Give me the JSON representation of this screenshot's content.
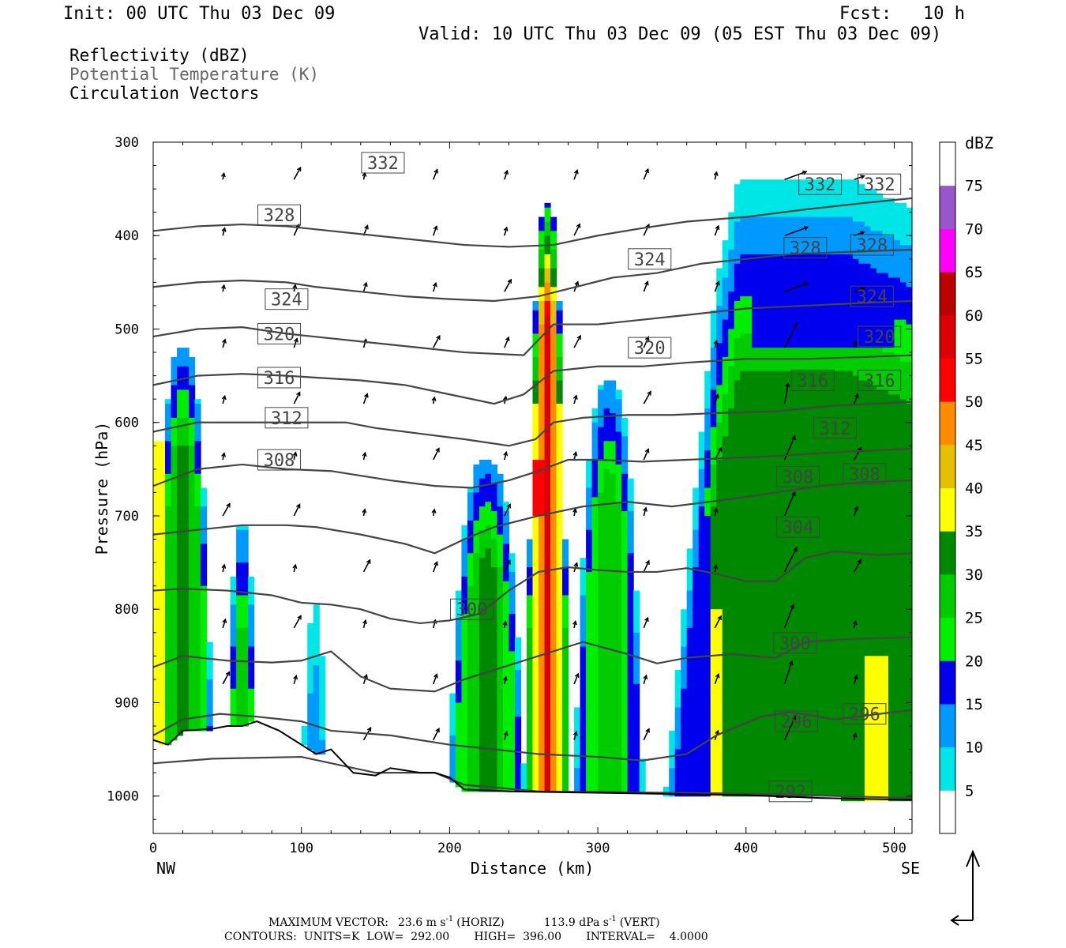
{
  "header": {
    "init": "Init: 00 UTC Thu 03 Dec 09",
    "fcst": "Fcst:   10 h",
    "valid": "Valid: 10 UTC Thu 03 Dec 09 (05 EST Thu 03 Dec 09)"
  },
  "variables": [
    "Reflectivity (dBZ)",
    "Potential Temperature (K)",
    "Circulation Vectors"
  ],
  "footer": {
    "max_vector_label": "MAXIMUM VECTOR:",
    "max_horiz": "23.6 m s",
    "horiz_sup": "-1",
    "horiz_tag": "(HORIZ)",
    "max_vert": "113.9 dPa s",
    "vert_sup": "-1",
    "vert_tag": "(VERT)",
    "contours": "CONTOURS:  UNITS=K  LOW=  292.00       HIGH=  396.00       INTERVAL=    4.0000"
  },
  "colorbar": {
    "title": "dBZ",
    "levels": [
      5,
      10,
      15,
      20,
      25,
      30,
      35,
      40,
      45,
      50,
      55,
      60,
      65,
      70,
      75
    ],
    "colors": [
      "#ffffff",
      "#00e5e5",
      "#0099ff",
      "#0000ee",
      "#00ee00",
      "#00cc00",
      "#008800",
      "#ffff00",
      "#e5c000",
      "#ff8c00",
      "#ff0000",
      "#dd0000",
      "#bb0000",
      "#ff00ff",
      "#9955cc",
      "#ffffff"
    ]
  },
  "chart_data": {
    "type": "cross-section",
    "xlabel": "Distance (km)",
    "ylabel": "Pressure (hPa)",
    "xlim": [
      0,
      512
    ],
    "ylim": [
      1040,
      300
    ],
    "x_ticks": [
      0,
      100,
      200,
      300,
      400,
      500
    ],
    "y_ticks": [
      300,
      400,
      500,
      600,
      700,
      800,
      900,
      1000
    ],
    "x_end_labels": [
      "NW",
      "SE"
    ],
    "theta_label_values": [
      "292",
      "296",
      "300",
      "304",
      "308",
      "312",
      "316",
      "320",
      "324",
      "328",
      "332"
    ],
    "theta_contours": [
      {
        "theta": 292,
        "points": [
          [
            0,
            965
          ],
          [
            40,
            960
          ],
          [
            100,
            958
          ],
          [
            150,
            975
          ],
          [
            190,
            975
          ],
          [
            210,
            988
          ],
          [
            260,
            995
          ],
          [
            320,
            996
          ],
          [
            380,
            997
          ],
          [
            420,
            998
          ],
          [
            460,
            1000
          ],
          [
            512,
            1002
          ]
        ],
        "labels": [
          [
            430,
            995
          ]
        ]
      },
      {
        "theta": 296,
        "points": [
          [
            0,
            935
          ],
          [
            20,
            918
          ],
          [
            45,
            912
          ],
          [
            70,
            915
          ],
          [
            100,
            920
          ],
          [
            120,
            930
          ],
          [
            160,
            935
          ],
          [
            200,
            945
          ],
          [
            230,
            950
          ],
          [
            260,
            955
          ],
          [
            300,
            958
          ],
          [
            330,
            962
          ],
          [
            360,
            955
          ],
          [
            380,
            935
          ],
          [
            410,
            915
          ],
          [
            430,
            910
          ],
          [
            460,
            918
          ],
          [
            490,
            912
          ],
          [
            512,
            908
          ]
        ],
        "labels": [
          [
            434,
            920
          ],
          [
            480,
            912
          ]
        ]
      },
      {
        "theta": 300,
        "points": [
          [
            0,
            862
          ],
          [
            20,
            850
          ],
          [
            50,
            855
          ],
          [
            80,
            857
          ],
          [
            100,
            855
          ],
          [
            120,
            845
          ],
          [
            140,
            872
          ],
          [
            160,
            885
          ],
          [
            190,
            888
          ],
          [
            210,
            875
          ],
          [
            240,
            860
          ],
          [
            260,
            850
          ],
          [
            290,
            835
          ],
          [
            320,
            848
          ],
          [
            340,
            858
          ],
          [
            360,
            852
          ],
          [
            390,
            848
          ],
          [
            420,
            852
          ],
          [
            440,
            835
          ],
          [
            470,
            832
          ],
          [
            512,
            830
          ]
        ],
        "labels": [
          [
            215,
            800
          ],
          [
            433,
            836
          ]
        ]
      },
      {
        "theta": 304,
        "points": [
          [
            0,
            780
          ],
          [
            20,
            778
          ],
          [
            50,
            780
          ],
          [
            80,
            785
          ],
          [
            100,
            793
          ],
          [
            120,
            795
          ],
          [
            140,
            800
          ],
          [
            160,
            810
          ],
          [
            180,
            815
          ],
          [
            200,
            812
          ],
          [
            220,
            805
          ],
          [
            240,
            780
          ],
          [
            260,
            760
          ],
          [
            280,
            755
          ],
          [
            300,
            758
          ],
          [
            320,
            760
          ],
          [
            340,
            760
          ],
          [
            360,
            756
          ],
          [
            380,
            762
          ],
          [
            400,
            770
          ],
          [
            420,
            770
          ],
          [
            440,
            745
          ],
          [
            460,
            738
          ],
          [
            490,
            742
          ],
          [
            512,
            740
          ]
        ],
        "labels": [
          [
            435,
            712
          ]
        ]
      },
      {
        "theta": 308,
        "points": [
          [
            0,
            720
          ],
          [
            30,
            715
          ],
          [
            60,
            710
          ],
          [
            90,
            710
          ],
          [
            110,
            712
          ],
          [
            140,
            720
          ],
          [
            170,
            730
          ],
          [
            190,
            740
          ],
          [
            210,
            725
          ],
          [
            230,
            712
          ],
          [
            260,
            700
          ],
          [
            290,
            690
          ],
          [
            320,
            685
          ],
          [
            350,
            690
          ],
          [
            390,
            682
          ],
          [
            420,
            675
          ],
          [
            450,
            668
          ],
          [
            480,
            664
          ],
          [
            512,
            662
          ]
        ],
        "labels": [
          [
            85,
            640
          ],
          [
            435,
            658
          ],
          [
            480,
            655
          ]
        ]
      },
      {
        "theta": 312,
        "points": [
          [
            0,
            668
          ],
          [
            30,
            650
          ],
          [
            60,
            645
          ],
          [
            90,
            650
          ],
          [
            120,
            652
          ],
          [
            160,
            662
          ],
          [
            190,
            668
          ],
          [
            215,
            670
          ],
          [
            240,
            662
          ],
          [
            260,
            652
          ],
          [
            280,
            640
          ],
          [
            300,
            640
          ],
          [
            330,
            642
          ],
          [
            360,
            640
          ],
          [
            390,
            638
          ],
          [
            420,
            636
          ],
          [
            460,
            632
          ],
          [
            512,
            628
          ]
        ],
        "labels": [
          [
            90,
            595
          ],
          [
            460,
            606
          ]
        ]
      },
      {
        "theta": 316,
        "points": [
          [
            0,
            610
          ],
          [
            30,
            600
          ],
          [
            60,
            600
          ],
          [
            100,
            600
          ],
          [
            130,
            600
          ],
          [
            150,
            606
          ],
          [
            180,
            612
          ],
          [
            210,
            618
          ],
          [
            240,
            625
          ],
          [
            258,
            618
          ],
          [
            270,
            600
          ],
          [
            290,
            595
          ],
          [
            320,
            592
          ],
          [
            350,
            592
          ],
          [
            380,
            590
          ],
          [
            420,
            588
          ],
          [
            460,
            582
          ],
          [
            512,
            578
          ]
        ],
        "labels": [
          [
            85,
            552
          ],
          [
            445,
            555
          ],
          [
            490,
            555
          ]
        ]
      },
      {
        "theta": 320,
        "points": [
          [
            0,
            560
          ],
          [
            30,
            550
          ],
          [
            60,
            548
          ],
          [
            90,
            550
          ],
          [
            110,
            552
          ],
          [
            140,
            555
          ],
          [
            170,
            560
          ],
          [
            200,
            570
          ],
          [
            230,
            580
          ],
          [
            250,
            570
          ],
          [
            270,
            545
          ],
          [
            300,
            540
          ],
          [
            330,
            540
          ],
          [
            360,
            536
          ],
          [
            400,
            532
          ],
          [
            440,
            532
          ],
          [
            480,
            530
          ],
          [
            512,
            528
          ]
        ],
        "labels": [
          [
            85,
            505
          ],
          [
            335,
            520
          ],
          [
            490,
            508
          ]
        ]
      },
      {
        "theta": 324,
        "points": [
          [
            0,
            508
          ],
          [
            30,
            500
          ],
          [
            60,
            498
          ],
          [
            90,
            505
          ],
          [
            120,
            510
          ],
          [
            150,
            515
          ],
          [
            180,
            520
          ],
          [
            210,
            525
          ],
          [
            250,
            528
          ],
          [
            270,
            495
          ],
          [
            300,
            495
          ],
          [
            330,
            490
          ],
          [
            360,
            485
          ],
          [
            400,
            478
          ],
          [
            440,
            475
          ],
          [
            480,
            472
          ],
          [
            512,
            470
          ]
        ],
        "labels": [
          [
            90,
            468
          ],
          [
            335,
            425
          ],
          [
            485,
            465
          ]
        ]
      },
      {
        "theta": 328,
        "points": [
          [
            0,
            455
          ],
          [
            30,
            450
          ],
          [
            60,
            448
          ],
          [
            90,
            450
          ],
          [
            110,
            455
          ],
          [
            140,
            460
          ],
          [
            170,
            465
          ],
          [
            200,
            468
          ],
          [
            230,
            470
          ],
          [
            260,
            465
          ],
          [
            285,
            455
          ],
          [
            310,
            445
          ],
          [
            340,
            440
          ],
          [
            370,
            430
          ],
          [
            400,
            425
          ],
          [
            430,
            420
          ],
          [
            460,
            418
          ],
          [
            512,
            415
          ]
        ],
        "labels": [
          [
            85,
            378
          ],
          [
            440,
            413
          ],
          [
            485,
            410
          ]
        ]
      },
      {
        "theta": 332,
        "points": [
          [
            0,
            395
          ],
          [
            30,
            390
          ],
          [
            60,
            388
          ],
          [
            90,
            390
          ],
          [
            120,
            395
          ],
          [
            150,
            400
          ],
          [
            180,
            405
          ],
          [
            210,
            410
          ],
          [
            240,
            412
          ],
          [
            270,
            410
          ],
          [
            300,
            400
          ],
          [
            330,
            392
          ],
          [
            360,
            385
          ],
          [
            400,
            380
          ],
          [
            440,
            372
          ],
          [
            480,
            365
          ],
          [
            512,
            360
          ]
        ],
        "labels": [
          [
            155,
            322
          ],
          [
            450,
            345
          ],
          [
            490,
            345
          ]
        ]
      }
    ],
    "reflectivity_cells": [
      {
        "name": "cell-nw-edge",
        "x": [
          0,
          40
        ],
        "p_top": 520,
        "peak_dbz": 35
      },
      {
        "name": "cell-55km",
        "x": [
          50,
          70
        ],
        "p_top": 710,
        "peak_dbz": 30
      },
      {
        "name": "cell-110km",
        "x": [
          100,
          118
        ],
        "p_top": 795,
        "peak_dbz": 15
      },
      {
        "name": "cell-210-250km",
        "x": [
          200,
          250
        ],
        "p_top": 640,
        "peak_dbz": 35
      },
      {
        "name": "cell-260km",
        "x": [
          252,
          280
        ],
        "p_top": 365,
        "peak_dbz": 55
      },
      {
        "name": "cell-300km",
        "x": [
          285,
          330
        ],
        "p_top": 555,
        "peak_dbz": 30
      },
      {
        "name": "cell-se-anvil",
        "x": [
          345,
          512
        ],
        "p_top": 325,
        "peak_dbz": 35
      }
    ]
  }
}
